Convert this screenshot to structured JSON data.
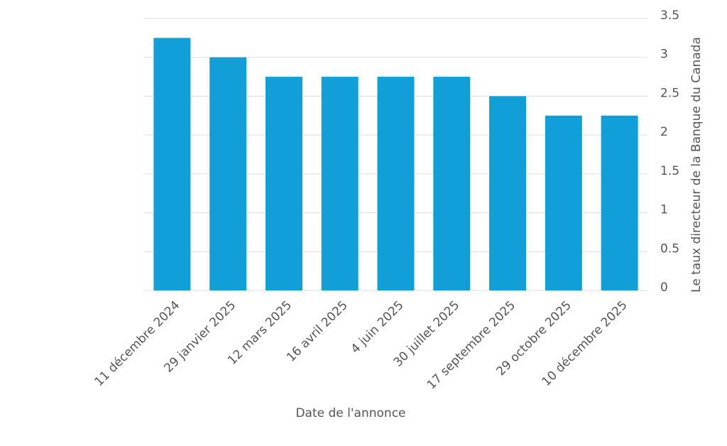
{
  "chart_data": {
    "type": "bar",
    "x_label": "Date de l'annonce",
    "y_label": "Le taux directeur de la Banque du Canada",
    "categories": [
      "11 décembre 2024",
      "29 janvier 2025",
      "12 mars 2025",
      "16 avril 2025",
      "4 juin 2025",
      "30 juillet 2025",
      "17 septembre 2025",
      "29 octobre 2025",
      "10 décembre 2025"
    ],
    "values": [
      3.25,
      3,
      2.75,
      2.75,
      2.75,
      2.75,
      2.5,
      2.25,
      2.25
    ],
    "color": "#129fd8",
    "ylim": [
      0,
      3.5
    ],
    "yticks": [
      0,
      0.5,
      1,
      1.5,
      2,
      2.5,
      3,
      3.5
    ],
    "y_axis_side": "right",
    "grid": true
  }
}
